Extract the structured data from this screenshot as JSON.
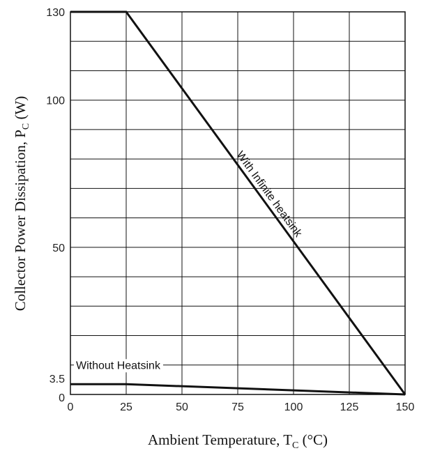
{
  "chart_data": {
    "type": "line",
    "xlabel": {
      "main": "Ambient Temperature, T",
      "sub": "C",
      "tail": " (°C)"
    },
    "ylabel": {
      "main": "Collector Power Dissipation, P",
      "sub": "C",
      "tail": " (W)"
    },
    "xlim": [
      0,
      150
    ],
    "ylim": [
      0,
      130
    ],
    "x_ticks": [
      0,
      25,
      50,
      75,
      100,
      125,
      150
    ],
    "y_ticks": [
      {
        "value": 0,
        "label": "0"
      },
      {
        "value": 3.5,
        "label": "3.5"
      },
      {
        "value": 50,
        "label": "50"
      },
      {
        "value": 100,
        "label": "100"
      },
      {
        "value": 130,
        "label": "130"
      }
    ],
    "grid": true,
    "series": [
      {
        "name": "With Infinite heatsink",
        "x": [
          0,
          25,
          150
        ],
        "y": [
          130,
          130,
          0
        ]
      },
      {
        "name": "Without Heatsink",
        "x": [
          0,
          25,
          150
        ],
        "y": [
          3.5,
          3.5,
          0
        ]
      }
    ],
    "colors": {
      "line": "#111111",
      "grid": "#111111",
      "frame": "#111111"
    }
  }
}
